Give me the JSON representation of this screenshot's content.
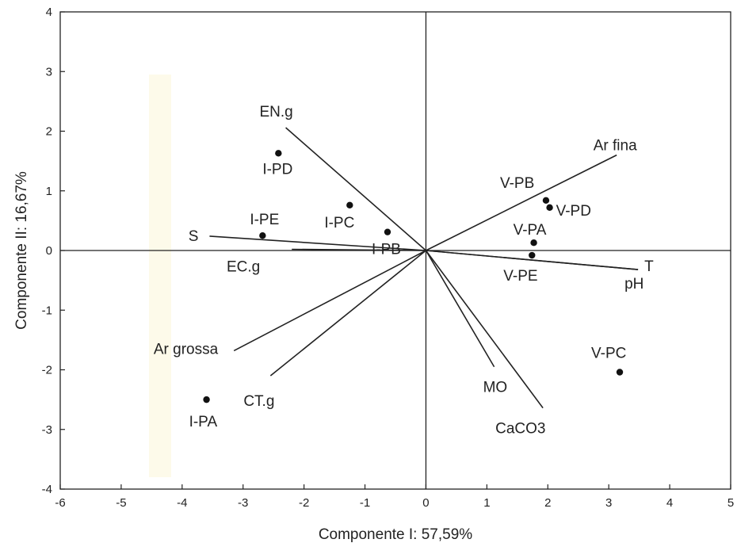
{
  "chart_data": {
    "type": "scatter",
    "title": "",
    "xlabel": "Componente I: 57,59%",
    "ylabel": "Componente II: 16,67%",
    "xlim": [
      -6,
      5
    ],
    "ylim": [
      -4,
      4
    ],
    "x_ticks": [
      "-6",
      "-5",
      "-4",
      "-3",
      "-2",
      "-1",
      "0",
      "1",
      "2",
      "3",
      "4",
      "5"
    ],
    "y_ticks": [
      "-4",
      "-3",
      "-2",
      "-1",
      "0",
      "1",
      "2",
      "3",
      "4"
    ],
    "grid": false,
    "points": [
      {
        "label": "I-PD",
        "x": -2.42,
        "y": 1.63
      },
      {
        "label": "I-PC",
        "x": -1.25,
        "y": 0.76
      },
      {
        "label": "I-PE",
        "x": -2.68,
        "y": 0.25
      },
      {
        "label": "I-PB",
        "x": -0.63,
        "y": 0.31
      },
      {
        "label": "I-PA",
        "x": -3.6,
        "y": -2.5
      },
      {
        "label": "V-PB",
        "x": 1.97,
        "y": 0.84
      },
      {
        "label": "V-PD",
        "x": 2.03,
        "y": 0.72
      },
      {
        "label": "V-PA",
        "x": 1.77,
        "y": 0.13
      },
      {
        "label": "V-PE",
        "x": 1.74,
        "y": -0.08
      },
      {
        "label": "V-PC",
        "x": 3.18,
        "y": -2.04
      }
    ],
    "vectors": [
      {
        "label": "EN.g",
        "x": -2.3,
        "y": 2.06
      },
      {
        "label": "Ar fina",
        "x": 3.13,
        "y": 1.6
      },
      {
        "label": "S",
        "x": -3.55,
        "y": 0.24
      },
      {
        "label": "EC.g",
        "x": -2.2,
        "y": 0.02
      },
      {
        "label": "T",
        "x": 3.48,
        "y": -0.32
      },
      {
        "label": "pH",
        "x": 3.48,
        "y": -0.32
      },
      {
        "label": "Ar grossa",
        "x": -3.15,
        "y": -1.68
      },
      {
        "label": "CT.g",
        "x": -2.55,
        "y": -2.1
      },
      {
        "label": "MO",
        "x": 1.12,
        "y": -1.95
      },
      {
        "label": "CaCO3",
        "x": 1.92,
        "y": -2.64
      }
    ]
  }
}
